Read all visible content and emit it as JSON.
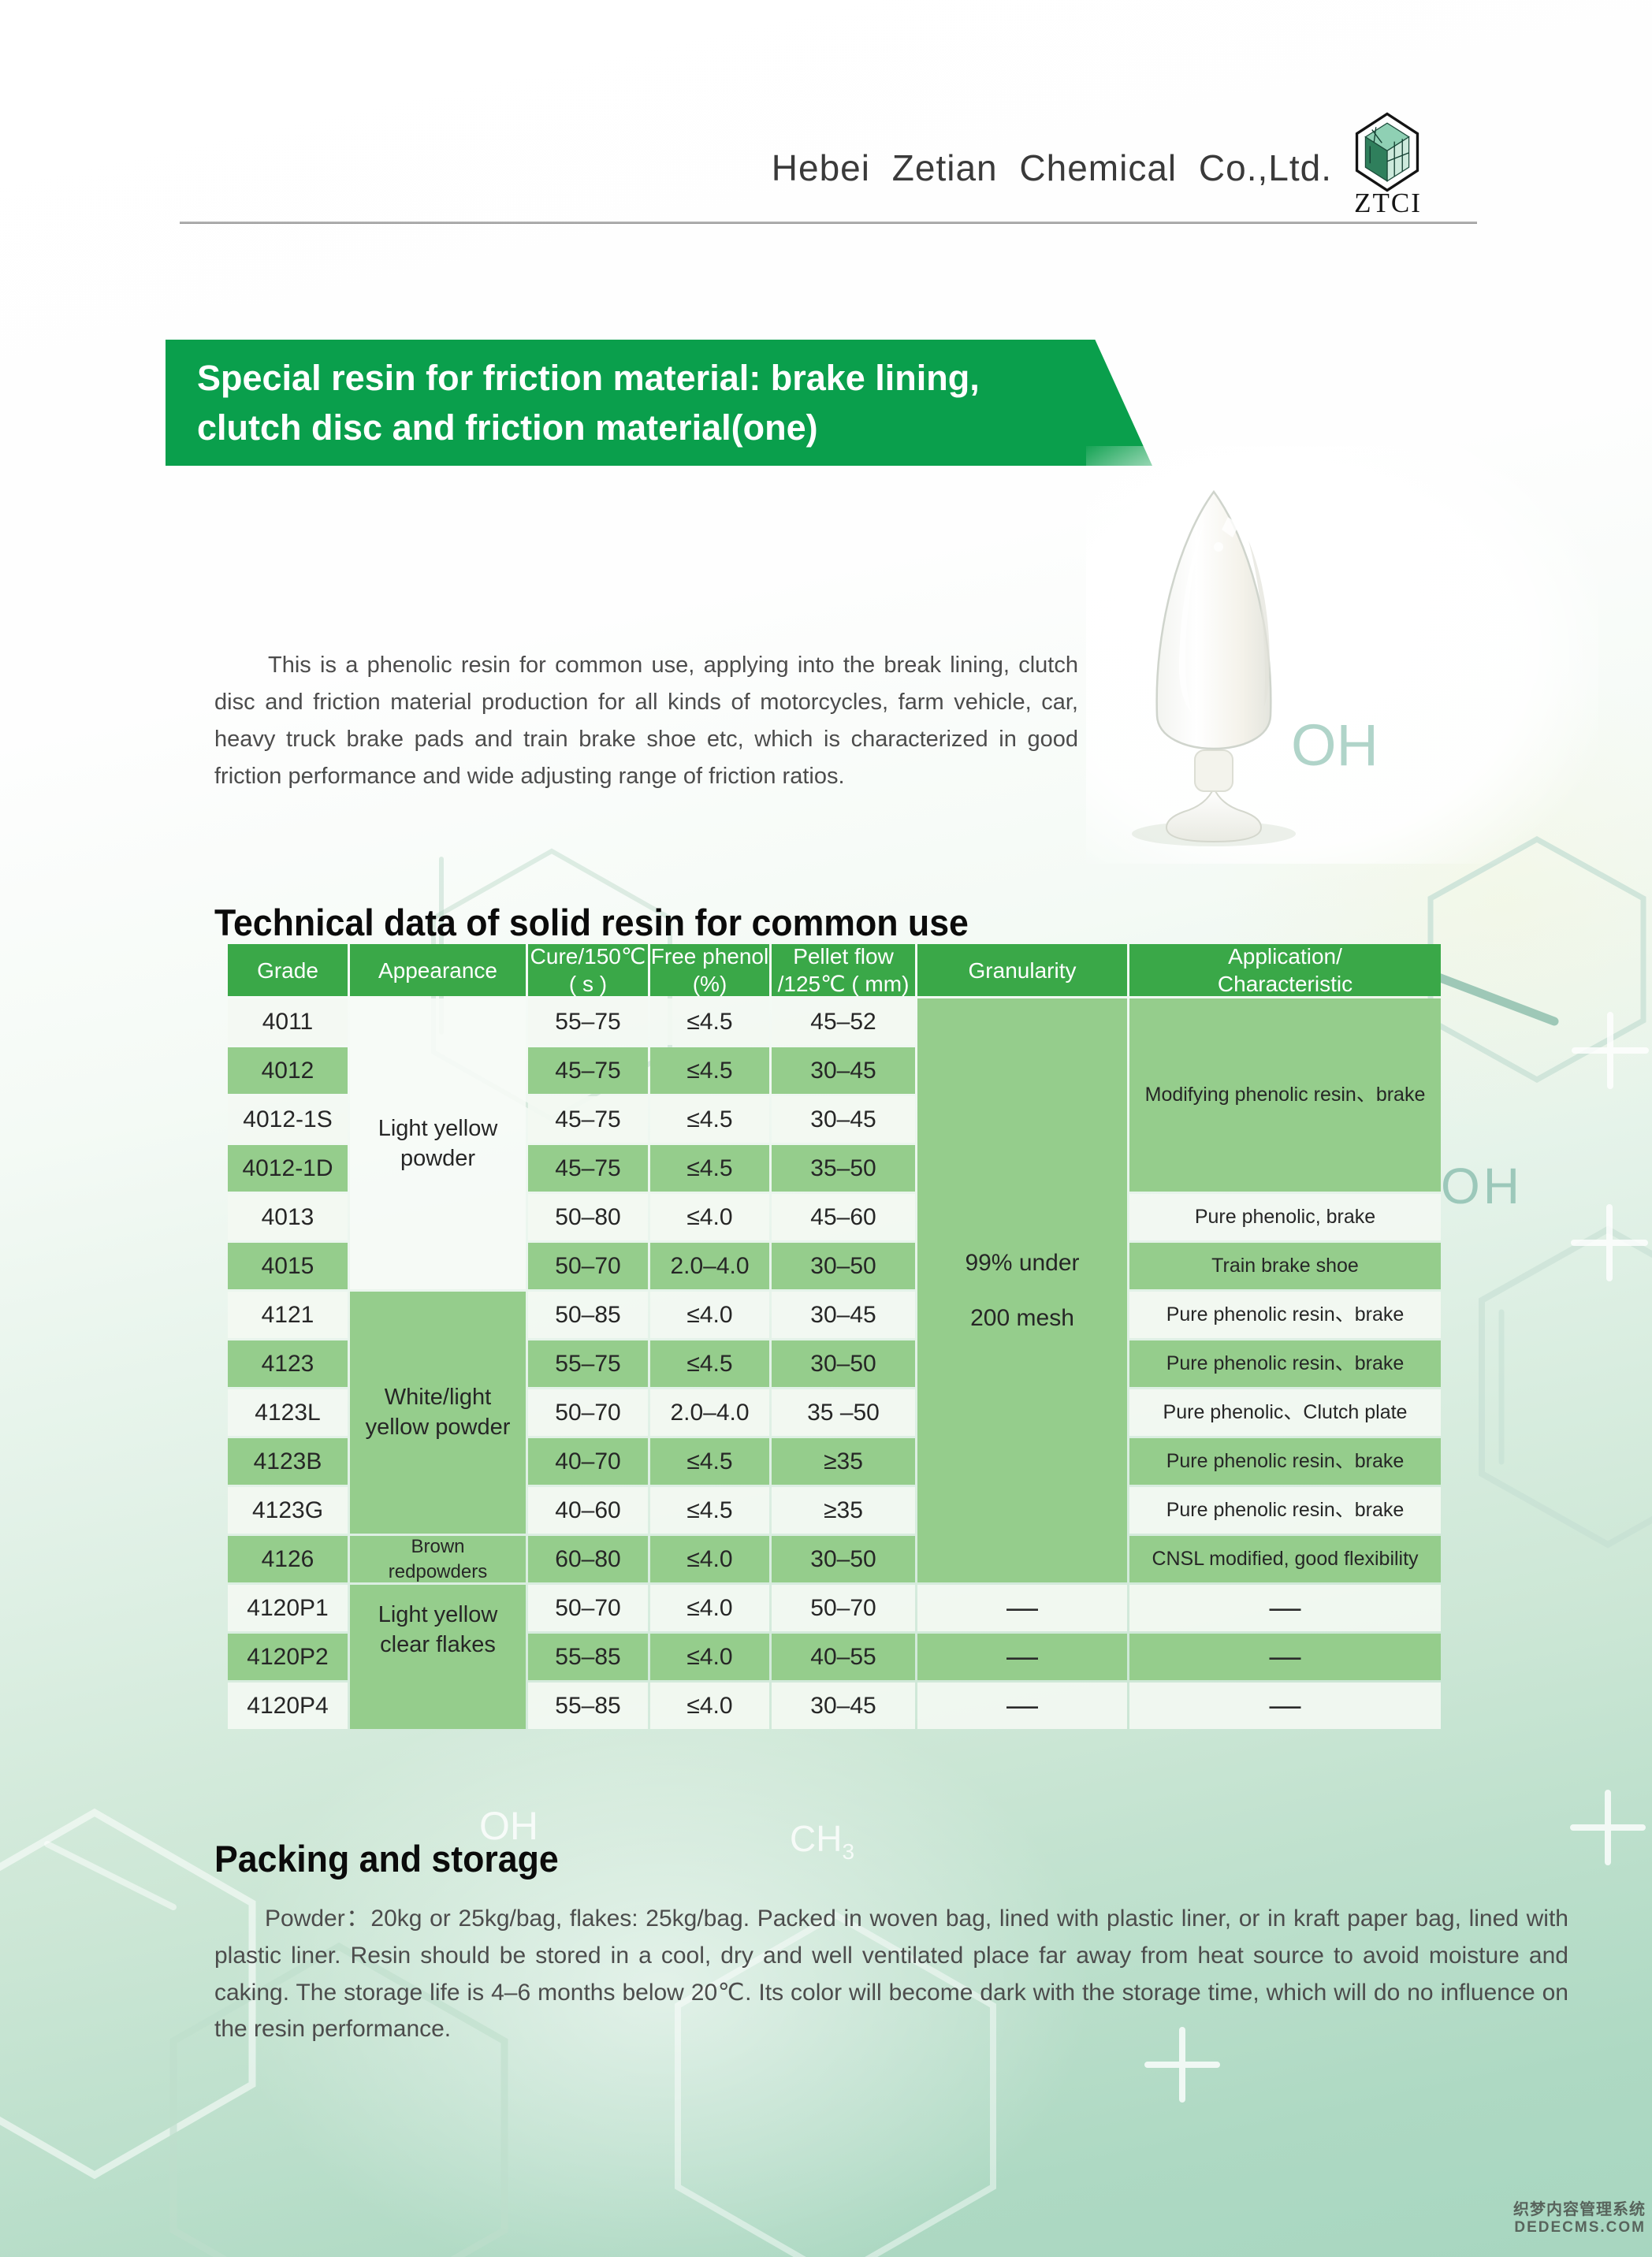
{
  "header": {
    "company": "Hebei Zetian Chemical Co.,Ltd.",
    "logo_text": "ZTCI"
  },
  "banner": {
    "line1": "Special resin for friction material: brake lining,",
    "line2": "clutch disc and friction material(one)"
  },
  "intro": {
    "text": "This is a phenolic resin for common use, applying into the break lining, clutch disc and friction material production for all kinds of motorcycles, farm vehicle, car, heavy truck brake pads and train brake shoe etc, which is characterized in good friction performance and wide adjusting range of friction ratios."
  },
  "sections": {
    "technical": "Technical data of solid resin for common use",
    "packing": "Packing and storage"
  },
  "table": {
    "col_headers": [
      {
        "l1": "Grade",
        "l2": ""
      },
      {
        "l1": "Appearance",
        "l2": ""
      },
      {
        "l1": "Cure/150℃",
        "l2": "( s )"
      },
      {
        "l1": "Free phenol",
        "l2": "(%)"
      },
      {
        "l1": "Pellet flow",
        "l2": "/125℃ ( mm)"
      },
      {
        "l1": "Granularity",
        "l2": ""
      },
      {
        "l1": "Application/",
        "l2": "Characteristic"
      }
    ],
    "rows": [
      {
        "grade": "4011",
        "cure": "55–75",
        "phenol": "≤4.5",
        "pellet": "45–52",
        "app": null
      },
      {
        "grade": "4012",
        "cure": "45–75",
        "phenol": "≤4.5",
        "pellet": "30–45",
        "app": null
      },
      {
        "grade": "4012-1S",
        "cure": "45–75",
        "phenol": "≤4.5",
        "pellet": "30–45",
        "app": null
      },
      {
        "grade": "4012-1D",
        "cure": "45–75",
        "phenol": "≤4.5",
        "pellet": "35–50",
        "app": null
      },
      {
        "grade": "4013",
        "cure": "50–80",
        "phenol": "≤4.0",
        "pellet": "45–60",
        "app": "Pure phenolic, brake"
      },
      {
        "grade": "4015",
        "cure": "50–70",
        "phenol": "2.0–4.0",
        "pellet": "30–50",
        "app": "Train brake shoe"
      },
      {
        "grade": "4121",
        "cure": "50–85",
        "phenol": "≤4.0",
        "pellet": "30–45",
        "app": "Pure phenolic resin、brake"
      },
      {
        "grade": "4123",
        "cure": "55–75",
        "phenol": "≤4.5",
        "pellet": "30–50",
        "app": "Pure phenolic resin、brake"
      },
      {
        "grade": "4123L",
        "cure": "50–70",
        "phenol": "2.0–4.0",
        "pellet": "35 –50",
        "app": "Pure phenolic、Clutch plate"
      },
      {
        "grade": "4123B",
        "cure": "40–70",
        "phenol": "≤4.5",
        "pellet": "≥35",
        "app": "Pure phenolic resin、brake"
      },
      {
        "grade": "4123G",
        "cure": "40–60",
        "phenol": "≤4.5",
        "pellet": "≥35",
        "app": "Pure phenolic resin、brake"
      },
      {
        "grade": "4126",
        "cure": "60–80",
        "phenol": "≤4.0",
        "pellet": "30–50",
        "app": "CNSL modified, good flexibility"
      },
      {
        "grade": "4120P1",
        "cure": "50–70",
        "phenol": "≤4.0",
        "pellet": "50–70",
        "app": "—"
      },
      {
        "grade": "4120P2",
        "cure": "55–85",
        "phenol": "≤4.0",
        "pellet": "40–55",
        "app": "—"
      },
      {
        "grade": "4120P4",
        "cure": "55–85",
        "phenol": "≤4.0",
        "pellet": "30–45",
        "app": "—"
      }
    ],
    "appearance_groups": [
      {
        "label": "Light yellow powder",
        "start": 1,
        "span": 6,
        "style": "lite"
      },
      {
        "label": "White/light yellow powder",
        "start": 7,
        "span": 5,
        "style": "g"
      },
      {
        "label": "Brown redpowders",
        "start": 12,
        "span": 1,
        "style": "g small"
      },
      {
        "label": "Light yellow clear flakes",
        "start": 13,
        "span": 3,
        "style": "g top"
      }
    ],
    "granularity_merged": {
      "l1": "99% under",
      "l2": "200 mesh",
      "start": 1,
      "span": 12
    },
    "granularity_dashes": [
      "—",
      "—",
      "—"
    ],
    "app_merged": {
      "label": "Modifying phenolic resin、brake",
      "start": 1,
      "span": 4
    },
    "dash": "—"
  },
  "packing": {
    "text": "Powder：20kg or 25kg/bag, flakes: 25kg/bag. Packed in woven bag, lined with plastic liner, or in kraft paper bag, lined with plastic liner. Resin should be stored in a cool, dry and well ventilated place far away from heat source to avoid moisture and caking. The storage life is 4–6 months below 20℃. Its color will become dark with the storage time, which will do no influence on the resin performance.",
    "powder_spec": "20kg or 25kg/bag",
    "flakes_spec": "25kg/bag",
    "storage_life": "4–6 months below 20℃"
  },
  "cms_watermark": {
    "line1": "织梦内容管理系统",
    "line2": "DEDECMS.COM"
  },
  "decor": {
    "oh": "OH",
    "ch": "CH",
    "ch_sub": "3"
  },
  "colors": {
    "banner_green": "#0a9f4c",
    "table_header_green": "#3aa848",
    "row_green": "#95cd8c",
    "watermark_teal": "#a4cfc2",
    "page_bottom_green": "#a7d6c0"
  }
}
